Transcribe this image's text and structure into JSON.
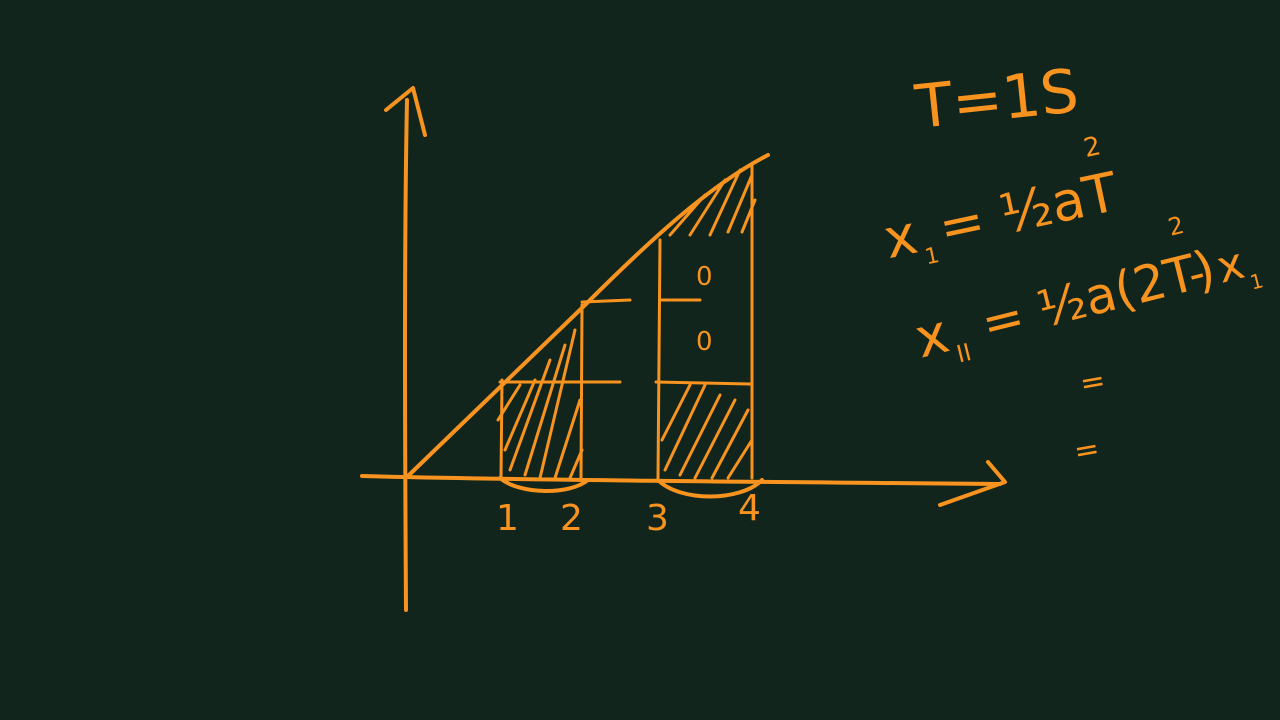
{
  "board": {
    "ink_color": "#f7931e",
    "background": "#11251d"
  },
  "graph": {
    "tick_labels": [
      "1",
      "2",
      "3",
      "4"
    ],
    "region_labels": [
      "0",
      "0"
    ]
  },
  "equations": {
    "period": "T=1S",
    "x1_lhs": "x",
    "x1_sub": "1",
    "x1_rhs": "= ½aT",
    "x1_exp": "2",
    "x2_lhs": "x",
    "x2_sub": "II",
    "x2_rhs": "= ½a(2T)",
    "x2_exp": "2",
    "x2_tail": "- x",
    "x2_tail_sub": "1",
    "line3": "=",
    "line4": "="
  }
}
